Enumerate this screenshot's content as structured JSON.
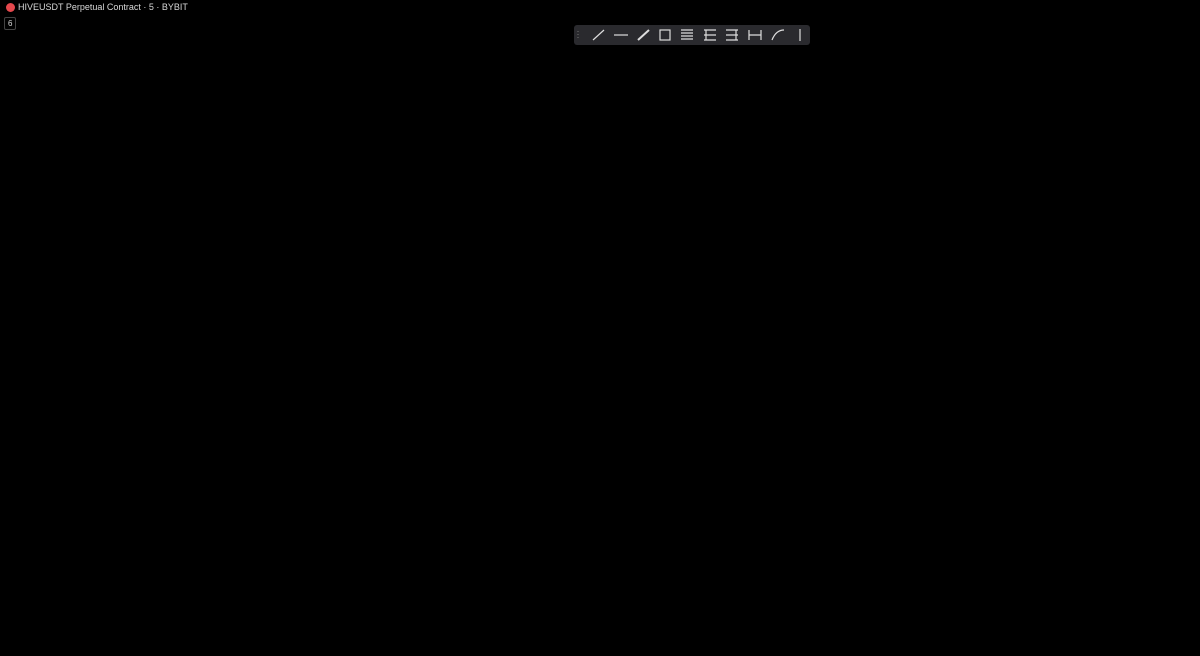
{
  "header": {
    "symbol_title": "HIVEUSDT Perpetual Contract · 5 · BYBIT",
    "indicator_count": "6"
  }
}
